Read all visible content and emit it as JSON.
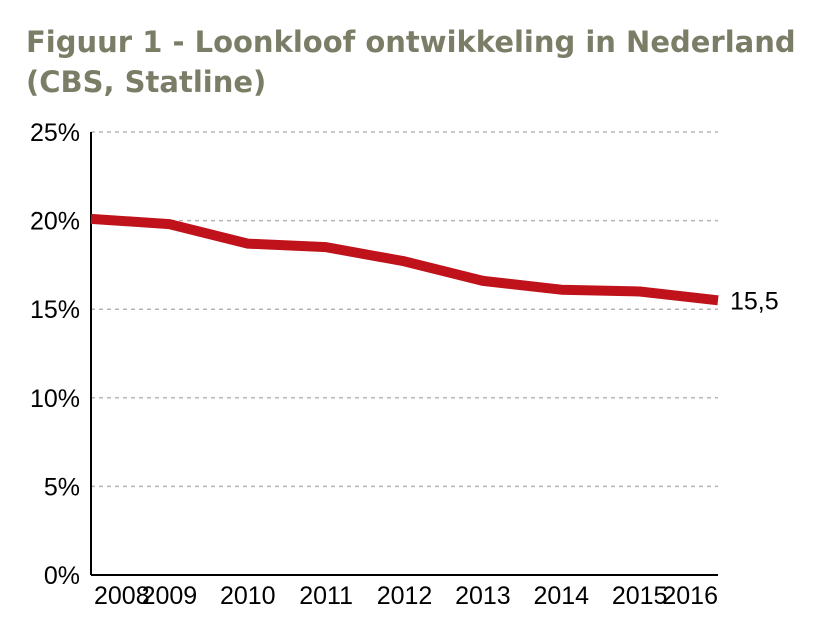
{
  "title_line1": "Figuur 1 - Loonkloof ontwikkeling in Nederland",
  "title_line2": "(CBS, Statline)",
  "chart_data": {
    "type": "line",
    "title": "Figuur 1 - Loonkloof ontwikkeling in Nederland (CBS, Statline)",
    "categories": [
      "2008",
      "2009",
      "2010",
      "2011",
      "2012",
      "2013",
      "2014",
      "2015",
      "2016"
    ],
    "series": [
      {
        "values": [
          20.1,
          19.8,
          18.7,
          18.5,
          17.7,
          16.6,
          16.1,
          16.0,
          15.5
        ],
        "color": "#c0121a"
      }
    ],
    "end_label": "15,5",
    "ylim": [
      0,
      25
    ],
    "yticks": [
      0,
      5,
      10,
      15,
      20,
      25
    ],
    "ytick_labels": [
      "0%",
      "5%",
      "10%",
      "15%",
      "20%",
      "25%"
    ],
    "grid": true,
    "grid_color": "#b5b5b5",
    "line_color": "#c0121a",
    "xlabel": "",
    "ylabel": ""
  }
}
